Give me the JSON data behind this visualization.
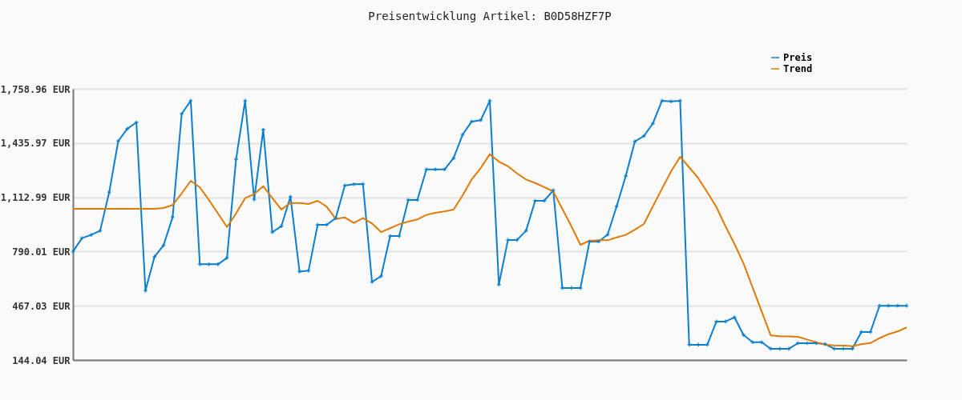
{
  "chart_data": {
    "type": "line",
    "title": "Preisentwicklung Artikel: B0D58HZF7P",
    "categories": [
      null,
      null,
      null,
      null,
      null,
      null,
      null,
      null,
      null,
      null,
      null,
      null,
      null,
      null,
      null,
      null,
      null,
      null,
      null,
      null,
      null,
      null,
      null,
      null,
      null,
      null,
      null,
      null,
      null,
      null,
      null,
      null,
      null,
      null,
      null,
      null,
      null,
      null,
      null,
      null,
      null,
      null,
      null,
      null,
      null,
      null,
      null,
      null,
      null,
      null,
      null,
      null,
      null,
      null,
      null,
      null,
      null,
      null,
      null,
      null,
      null,
      null,
      null,
      null,
      null,
      null,
      null,
      null,
      null,
      null,
      null,
      null,
      null,
      null,
      null,
      null,
      null,
      null,
      null,
      null,
      null,
      null,
      null,
      null,
      null,
      null,
      null,
      null,
      null,
      null,
      null,
      null,
      null
    ],
    "series": [
      {
        "name": "Preis",
        "color": "#0a7fcf",
        "marker": "cross",
        "values": [
          790,
          870,
          889,
          914,
          1143,
          1448,
          1521,
          1559,
          557,
          759,
          827,
          995,
          1610,
          1688,
          714,
          714,
          714,
          752,
          1340,
          1688,
          1100,
          1516,
          905,
          941,
          1116,
          671,
          676,
          949,
          949,
          989,
          1183,
          1191,
          1192,
          609,
          643,
          882,
          882,
          1097,
          1097,
          1279,
          1279,
          1279,
          1346,
          1486,
          1564,
          1572,
          1688,
          593,
          859,
          859,
          914,
          1092,
          1092,
          1155,
          573,
          573,
          573,
          849,
          849,
          891,
          1060,
          1240,
          1445,
          1478,
          1553,
          1688,
          1684,
          1688,
          235,
          235,
          235,
          373,
          373,
          398,
          293,
          250,
          250,
          211,
          211,
          211,
          244,
          244,
          244,
          239,
          211,
          211,
          211,
          311,
          311,
          467,
          467,
          467,
          467
        ]
      },
      {
        "name": "Trend",
        "color": "#e07b00",
        "values": [
          1044,
          1044,
          1044,
          1044,
          1044,
          1044,
          1044,
          1044,
          1044,
          1044,
          1049,
          1067,
          1136,
          1211,
          1172,
          1097,
          1017,
          936,
          1017,
          1108,
          1132,
          1179,
          1108,
          1040,
          1079,
          1079,
          1073,
          1092,
          1057,
          984,
          993,
          960,
          989,
          957,
          906,
          929,
          952,
          968,
          981,
          1008,
          1021,
          1029,
          1040,
          1124,
          1219,
          1287,
          1370,
          1325,
          1298,
          1255,
          1219,
          1198,
          1174,
          1148,
          1044,
          941,
          830,
          854,
          857,
          857,
          874,
          889,
          920,
          954,
          1060,
          1164,
          1267,
          1354,
          1291,
          1227,
          1143,
          1055,
          941,
          835,
          719,
          576,
          433,
          290,
          286,
          284,
          282,
          266,
          250,
          235,
          231,
          230,
          226,
          238,
          245,
          274,
          298,
          314,
          338
        ]
      }
    ],
    "ylim": [
      144.04,
      1758.96
    ],
    "yticks": [
      {
        "value": 144.04,
        "label": "144.04 EUR"
      },
      {
        "value": 467.03,
        "label": "467.03 EUR"
      },
      {
        "value": 790.01,
        "label": "790.01 EUR"
      },
      {
        "value": 1112.99,
        "label": "1,112.99 EUR"
      },
      {
        "value": 1435.97,
        "label": "1,435.97 EUR"
      },
      {
        "value": 1758.96,
        "label": "1,758.96 EUR"
      }
    ],
    "grid": "y",
    "legend": "top right",
    "tick_labels": "y"
  }
}
